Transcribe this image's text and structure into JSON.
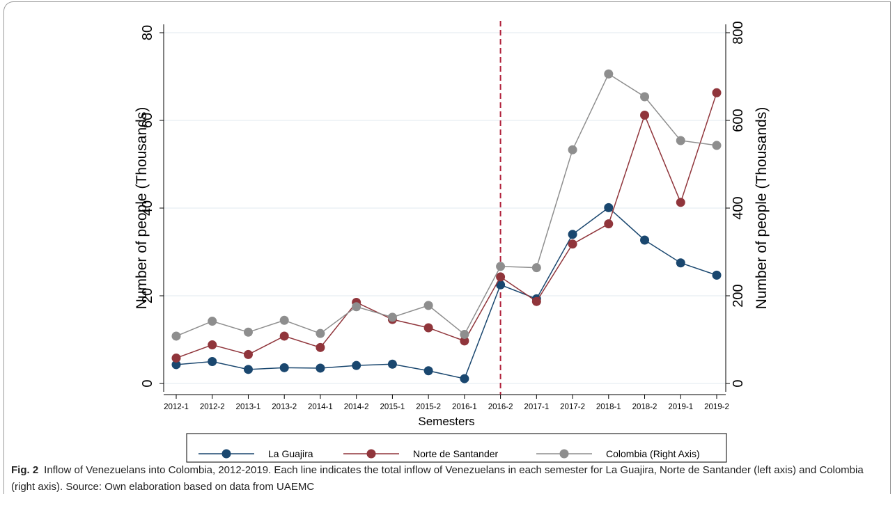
{
  "chart_data": {
    "type": "line",
    "x_label": "Semesters",
    "y_label": "Number of people (Thousands)",
    "y2_label": "Number of people (Thousands)",
    "categories": [
      "2012-1",
      "2012-2",
      "2013-1",
      "2013-2",
      "2014-1",
      "2014-2",
      "2015-1",
      "2015-2",
      "2016-1",
      "2016-2",
      "2017-1",
      "2017-2",
      "2018-1",
      "2018-2",
      "2019-1",
      "2019-2"
    ],
    "series": [
      {
        "name": "La Guajira",
        "color": "#1a476f",
        "values": [
          4.3,
          5.0,
          3.2,
          3.6,
          3.5,
          4.1,
          4.4,
          2.9,
          1.1,
          22.5,
          19.3,
          34.0,
          40.1,
          32.7,
          27.5,
          24.7
        ]
      },
      {
        "name": "Norte de Santander",
        "color": "#90353b",
        "values": [
          5.8,
          8.8,
          6.6,
          10.8,
          8.2,
          18.5,
          14.6,
          12.7,
          9.7,
          24.3,
          18.7,
          31.8,
          36.4,
          61.2,
          41.3,
          66.3
        ]
      },
      {
        "name": "Colombia (Right Axis)",
        "color": "#8e8e8e",
        "axis": "y2",
        "values": [
          108,
          142,
          117,
          144,
          114,
          175,
          151,
          178,
          112,
          267,
          264,
          533,
          706,
          654,
          554,
          543
        ]
      }
    ],
    "ylim": [
      0,
      80
    ],
    "yticks": [
      0,
      20,
      40,
      60,
      80
    ],
    "y2lim": [
      0,
      800
    ],
    "y2ticks": [
      0,
      200,
      400,
      600,
      800
    ],
    "grid": true,
    "legend": "bottom",
    "vline": {
      "x": "2016-2",
      "color": "#b0203a"
    },
    "caption": {
      "label": "Fig. 2",
      "text": "Inflow of Venezuelans into Colombia, 2012-2019. Each line indicates the total inflow of Venezuelans in each semester for La Guajira, Norte de Santander (left axis) and Colombia (right axis). Source: Own elaboration based on data from UAEMC"
    }
  }
}
